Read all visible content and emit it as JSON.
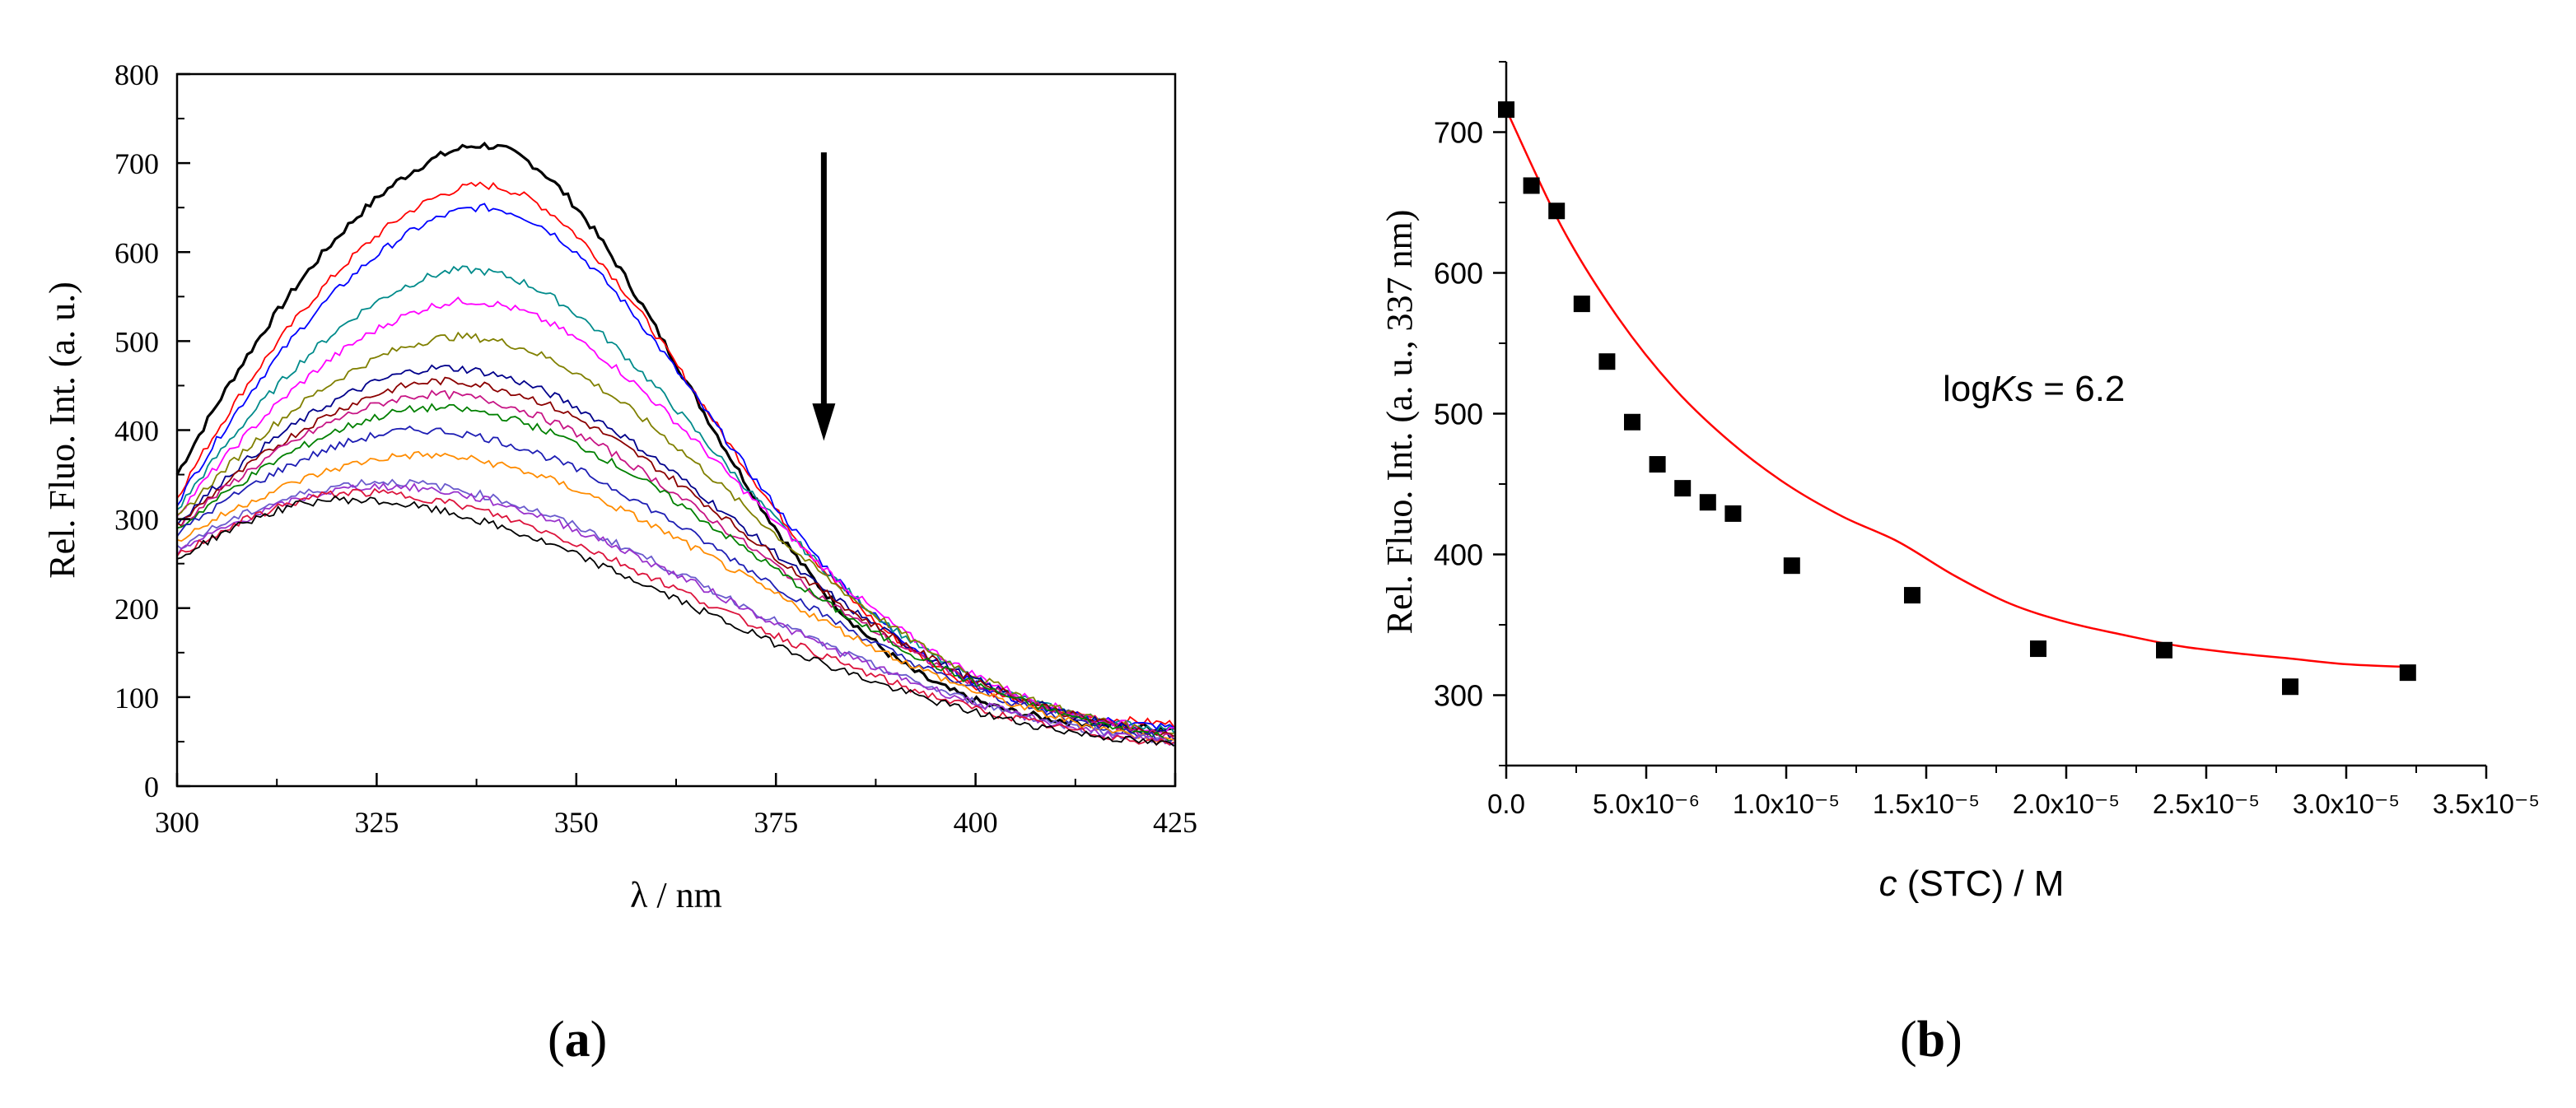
{
  "panel_a_label": "a",
  "panel_b_label": "b",
  "chart_data": [
    {
      "type": "line",
      "title": "",
      "xlabel": "λ / nm",
      "ylabel": "Rel. Fluo. Int. (a. u.)",
      "xlim": [
        300,
        425
      ],
      "ylim": [
        0,
        800
      ],
      "x_ticks": [
        "300",
        "325",
        "350",
        "375",
        "400",
        "425"
      ],
      "y_ticks": [
        "0",
        "100",
        "200",
        "300",
        "400",
        "500",
        "600",
        "700",
        "800"
      ],
      "grid": false,
      "legend": "none",
      "annotation": "downward arrow at 381 nm from 710 to 390 (decreasing intensity)",
      "series": [
        {
          "color": "#000000",
          "peak_x": 338,
          "peak": 720,
          "start": 350,
          "end": 65,
          "width": 3.2
        },
        {
          "color": "#ff0000",
          "peak_x": 338,
          "peak": 675,
          "start": 325,
          "end": 70,
          "width": 1.8
        },
        {
          "color": "#0000ff",
          "peak_x": 338,
          "peak": 650,
          "start": 318,
          "end": 66,
          "width": 1.8
        },
        {
          "color": "#008b8b",
          "peak_x": 336,
          "peak": 580,
          "start": 310,
          "end": 63,
          "width": 1.8
        },
        {
          "color": "#ff00ff",
          "peak_x": 336,
          "peak": 545,
          "start": 305,
          "end": 61,
          "width": 1.8
        },
        {
          "color": "#808000",
          "peak_x": 335,
          "peak": 505,
          "start": 300,
          "end": 59,
          "width": 1.8
        },
        {
          "color": "#00008b",
          "peak_x": 333,
          "peak": 470,
          "start": 295,
          "end": 57,
          "width": 1.8
        },
        {
          "color": "#8b0000",
          "peak_x": 333,
          "peak": 455,
          "start": 292,
          "end": 56,
          "width": 1.8
        },
        {
          "color": "#c71585",
          "peak_x": 332,
          "peak": 440,
          "start": 290,
          "end": 55,
          "width": 1.8
        },
        {
          "color": "#008000",
          "peak_x": 332,
          "peak": 425,
          "start": 288,
          "end": 54,
          "width": 1.8
        },
        {
          "color": "#1e1eb4",
          "peak_x": 330,
          "peak": 400,
          "start": 283,
          "end": 52,
          "width": 1.8
        },
        {
          "color": "#ff8c00",
          "peak_x": 330,
          "peak": 372,
          "start": 275,
          "end": 50,
          "width": 1.8
        },
        {
          "color": "#6a5acd",
          "peak_x": 325,
          "peak": 342,
          "start": 268,
          "end": 49,
          "width": 1.8
        },
        {
          "color": "#9932cc",
          "peak_x": 325,
          "peak": 337,
          "start": 262,
          "end": 48,
          "width": 1.8
        },
        {
          "color": "#dc143c",
          "peak_x": 322,
          "peak": 330,
          "start": 258,
          "end": 47,
          "width": 1.8
        },
        {
          "color": "#000000",
          "peak_x": 320,
          "peak": 322,
          "start": 255,
          "end": 46,
          "width": 1.8
        }
      ]
    },
    {
      "type": "scatter",
      "title": "",
      "xlabel_italic": "c",
      "xlabel_rest": " (STC) / M",
      "ylabel": "Rel. Fluo. Int. (a. u., 337 nm)",
      "xlim": [
        0,
        3.5e-05
      ],
      "ylim": [
        250,
        750
      ],
      "x_ticks": [
        "0.0",
        "5.0x10⁻⁶",
        "1.0x10⁻⁵",
        "1.5x10⁻⁵",
        "2.0x10⁻⁵",
        "2.5x10⁻⁵",
        "3.0x10⁻⁵",
        "3.5x10⁻⁵"
      ],
      "y_ticks": [
        "300",
        "400",
        "500",
        "600",
        "700"
      ],
      "grid": false,
      "legend": "none",
      "annotation_prefix": "log",
      "annotation_italic": "Ks",
      "annotation_suffix": " = 6.2",
      "points": {
        "x": [
          0.0,
          9e-07,
          1.8e-06,
          2.7e-06,
          3.6e-06,
          4.5e-06,
          5.4e-06,
          6.3e-06,
          7.2e-06,
          8.1e-06,
          1.02e-05,
          1.45e-05,
          1.9e-05,
          2.35e-05,
          2.8e-05,
          3.22e-05
        ],
        "y": [
          716,
          662,
          644,
          578,
          537,
          494,
          464,
          447,
          437,
          429,
          392,
          371,
          333,
          332,
          306,
          316
        ]
      },
      "fit": {
        "color": "#ff0000",
        "model": "exponential decay",
        "x": [
          0.0,
          2e-06,
          4e-06,
          6e-06,
          8e-06,
          1e-05,
          1.2e-05,
          1.4e-05,
          1.6e-05,
          1.8e-05,
          2e-05,
          2.2e-05,
          2.4e-05,
          2.6e-05,
          2.8e-05,
          3e-05,
          3.22e-05
        ],
        "y": [
          716,
          632,
          568,
          518,
          480,
          450,
          427,
          409,
          385,
          365,
          352,
          343,
          335,
          330,
          326,
          322,
          320
        ]
      }
    }
  ]
}
